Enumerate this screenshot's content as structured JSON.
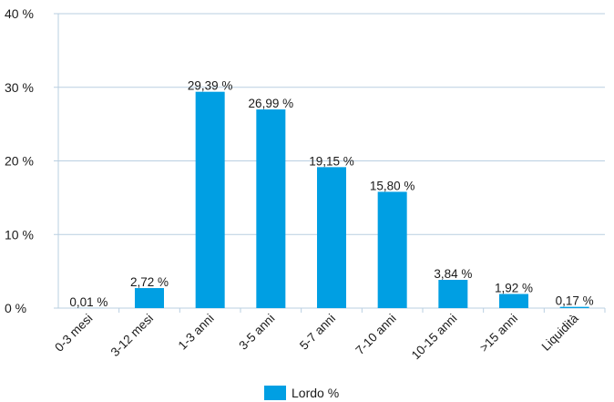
{
  "chart_data": {
    "type": "bar",
    "categories": [
      "0-3 mesi",
      "3-12 mesi",
      "1-3 anni",
      "3-5 anni",
      "5-7 anni",
      "7-10 anni",
      "10-15 anni",
      ">15 anni",
      "Liquidità"
    ],
    "series": [
      {
        "name": "Lordo %",
        "values": [
          0.01,
          2.72,
          29.39,
          26.99,
          19.15,
          15.8,
          3.84,
          1.92,
          0.17
        ]
      }
    ],
    "data_labels": [
      "0,01 %",
      "2,72 %",
      "29,39 %",
      "26,99 %",
      "19,15 %",
      "15,80 %",
      "3,84 %",
      "1,92 %",
      "0,17 %"
    ],
    "yticks": [
      0,
      10,
      20,
      30,
      40
    ],
    "ytick_labels": [
      "0 %",
      "10 %",
      "20 %",
      "30 %",
      "40 %"
    ],
    "ylim": [
      0,
      40
    ],
    "grid": true,
    "legend_position": "bottom",
    "bar_color": "#009fe3",
    "grid_color": "#b9cfe1"
  }
}
